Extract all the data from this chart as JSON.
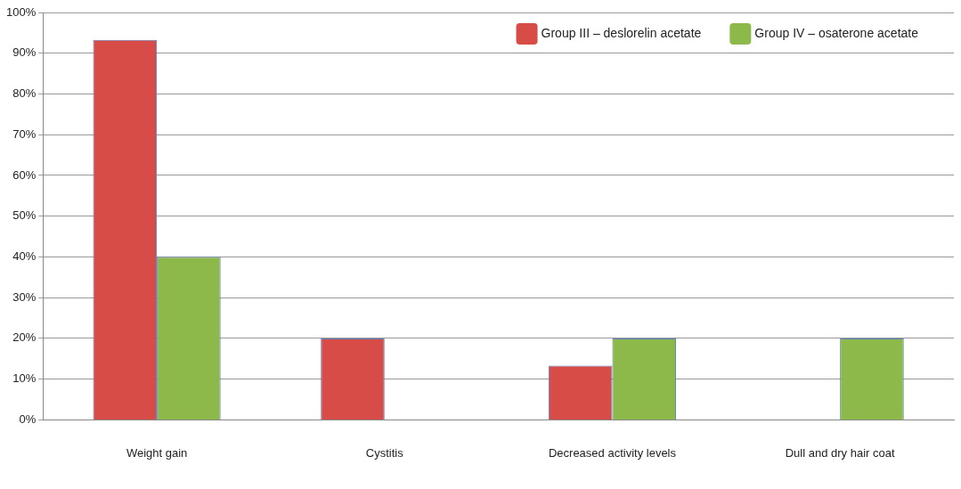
{
  "chart_data": {
    "type": "bar",
    "categories": [
      "Weight gain",
      "Cystitis",
      "Decreased activity levels",
      "Dull and dry hair coat"
    ],
    "series": [
      {
        "name": "Group III – deslorelin acetate",
        "color": "#d84c47",
        "values": [
          93.3,
          20,
          13.3,
          0
        ]
      },
      {
        "name": "Group IV – osaterone acetate",
        "color": "#8cb94a",
        "values": [
          40,
          0,
          20,
          20
        ]
      }
    ],
    "ylim": [
      0,
      100
    ],
    "yticks": [
      {
        "value": 0,
        "label": "0%"
      },
      {
        "value": 10,
        "label": "10%"
      },
      {
        "value": 20,
        "label": "20%"
      },
      {
        "value": 30,
        "label": "30%"
      },
      {
        "value": 40,
        "label": "40%"
      },
      {
        "value": 50,
        "label": "50%"
      },
      {
        "value": 60,
        "label": "60%"
      },
      {
        "value": 70,
        "label": "70%"
      },
      {
        "value": 80,
        "label": "80%"
      },
      {
        "value": 90,
        "label": "90%"
      },
      {
        "value": 100,
        "label": "100%"
      }
    ],
    "grid": "y",
    "legend": "top right"
  }
}
